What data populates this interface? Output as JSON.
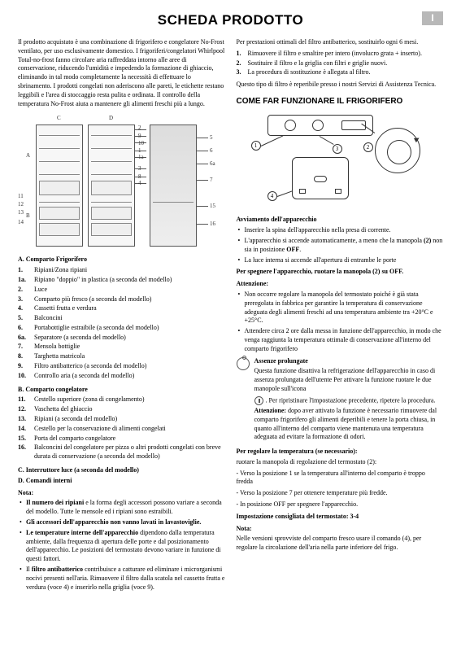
{
  "header": {
    "title": "SCHEDA PRODOTTO",
    "lang": "I"
  },
  "left": {
    "intro": "Il prodotto acquistato è una combinazione di frigorifero e congelatore No-Frost ventilato, per uso esclusivamente domestico. I frigoriferi/congelatori Whirlpool Total-no-frost fanno circolare aria raffreddata intorno alle aree di conservazione, riducendo l'umidità e impedendo la formazione di ghiaccio, eliminando in tal modo completamente la necessità di effettuare lo sbrinamento. I prodotti congelati non aderiscono alle pareti, le etichette restano leggibili e l'area di stoccaggio resta pulita e ordinata. Il controllo della temperatura No-Frost aiuta a mantenere gli alimenti freschi più a lungo.",
    "sectionA": "A. Comparto Frigorifero",
    "legendA": [
      {
        "n": "1.",
        "t": "Ripiani/Zona ripiani"
      },
      {
        "n": "1a.",
        "t": "Ripiano \"doppio\" in plastica (a seconda del modello)"
      },
      {
        "n": "2.",
        "t": "Luce"
      },
      {
        "n": "3.",
        "t": "Comparto più fresco (a seconda del modello)"
      },
      {
        "n": "4.",
        "t": "Cassetti frutta e verdura"
      },
      {
        "n": "5.",
        "t": "Balconcini"
      },
      {
        "n": "6.",
        "t": "Portabottiglie estraibile (a seconda del modello)"
      },
      {
        "n": "6a.",
        "t": "Separatore (a seconda del modello)"
      },
      {
        "n": "7.",
        "t": "Mensola bottiglie"
      },
      {
        "n": "8.",
        "t": "Targhetta matricola"
      },
      {
        "n": "9.",
        "t": "Filtro antibatterico (a seconda del modello)"
      },
      {
        "n": "10.",
        "t": "Controllo aria (a seconda del modello)"
      }
    ],
    "sectionB": "B. Comparto congelatore",
    "legendB": [
      {
        "n": "11.",
        "t": "Cestello superiore (zona di congelamento)"
      },
      {
        "n": "12.",
        "t": "Vaschetta del ghiaccio"
      },
      {
        "n": "13.",
        "t": "Ripiani (a seconda del modello)"
      },
      {
        "n": "14.",
        "t": "Cestello per la conservazione di alimenti congelati"
      },
      {
        "n": "15.",
        "t": "Porta del comparto congelatore"
      },
      {
        "n": "16.",
        "t": "Balconcini del congelatore per pizza o altri prodotti congelati con breve durata di conservazione (a seconda del modello)"
      }
    ],
    "sectionC": "C. Interruttore luce (a seconda del modello)",
    "sectionD": "D. Comandi interni",
    "notaTitle": "Nota:",
    "nota": [
      "Il numero dei ripiani e la forma degli accessori possono variare a seconda del modello. Tutte le mensole ed i ripiani sono estraibili.",
      "Gli accessori dell'apparecchio non vanno lavati in lavastoviglie.",
      "Le temperature interne dell'apparecchio dipendono dalla temperatura ambiente, dalla frequenza di apertura delle porte e dal posizionamento dell'apparecchio. Le posizioni del termostato devono variare in funzione di questi fattori.",
      "Il filtro antibatterico contribuisce a catturare ed eliminare i microrganismi nocivi presenti nell'aria. Rimuovere il filtro dalla scatola nel cassetto frutta e verdura (voce 4) e inserirlo nella griglia (voce 9)."
    ]
  },
  "right": {
    "prestazioni": "Per prestazioni ottimali del filtro antibatterico, sostituirlo ogni 6 mesi.",
    "steps": [
      {
        "n": "1.",
        "t": "Rimuovere il filtro e smaltire per intero (involucro grata + inserto)."
      },
      {
        "n": "2.",
        "t": "Sostituire il filtro e la griglia con filtri e griglie nuovi."
      },
      {
        "n": "3.",
        "t": "La procedura di sostituzione è allegata al filtro."
      }
    ],
    "tipoFiltro": "Questo tipo di filtro è reperibile presso i nostri Servizi di Assistenza Tecnica.",
    "comeFar": "COME FAR FUNZIONARE IL FRIGORIFERO",
    "avviamento": "Avviamento dell'apparecchio",
    "avvBullets": [
      "Inserire la spina dell'apparecchio nella presa di corrente.",
      "L'apparecchio si accende automaticamente, a meno che la manopola (2) non sia in posizione OFF.",
      "La luce interna si accende all'apertura di entrambe le porte"
    ],
    "spegnere": "Per spegnere l'apparecchio, ruotare la manopola (2) su OFF.",
    "attenzione": "Attenzione:",
    "attBullets": [
      "Non occorre regolare la manopola del termostato poiché è già stata preregolata in fabbrica per garantire la temperatura di conservazione adeguata degli alimenti freschi ad una temperatura ambiente tra +20°C e +25°C.",
      "Attendere circa 2 ore dalla messa in funzione dell'apparecchio, in modo che venga raggiunta la temperatura ottimale di conservazione all'interno del comparto frigorifero"
    ],
    "assenzeTitle": "Assenze prolungate",
    "assenzeBody": "Questa funzione disattiva la refrigerazione dell'apparecchio in caso di assenza prolungata dell'utente Per attivare la funzione ruotare le due manopole sull'icona",
    "ripristinare": ". Per ripristinare l'impostazione precedente, ripetere la procedura.",
    "attenzione2": "Attenzione: dopo aver attivato la funzione è necessario rimuovere dal comparto frigorifero gli alimenti deperibili e tenere la porta chiusa, in quanto all'interno del comparto viene mantenuta una temperatura adeguata ad evitare la formazione di odori.",
    "regolare": "Per regolare la temperatura (se necessario):",
    "regolare1": "ruotare la manopola di regolazione del termostato (2):",
    "regolare2": "- Verso la posizione 1 se la temperatura all'interno del comparto è troppo fredda",
    "regolare3": "- Verso la posizione 7 per ottenere temperature più fredde.",
    "regolare4": "- In posizione OFF per spegnere l'apparecchio.",
    "impost": "Impostazione consigliata del termostato: 3-4",
    "notaR": "Nota:",
    "notaRBody": "Nelle versioni sprovviste del comparto fresco usare il comando (4), per regolare la circolazione dell'aria nella parte inferiore del frigo."
  }
}
